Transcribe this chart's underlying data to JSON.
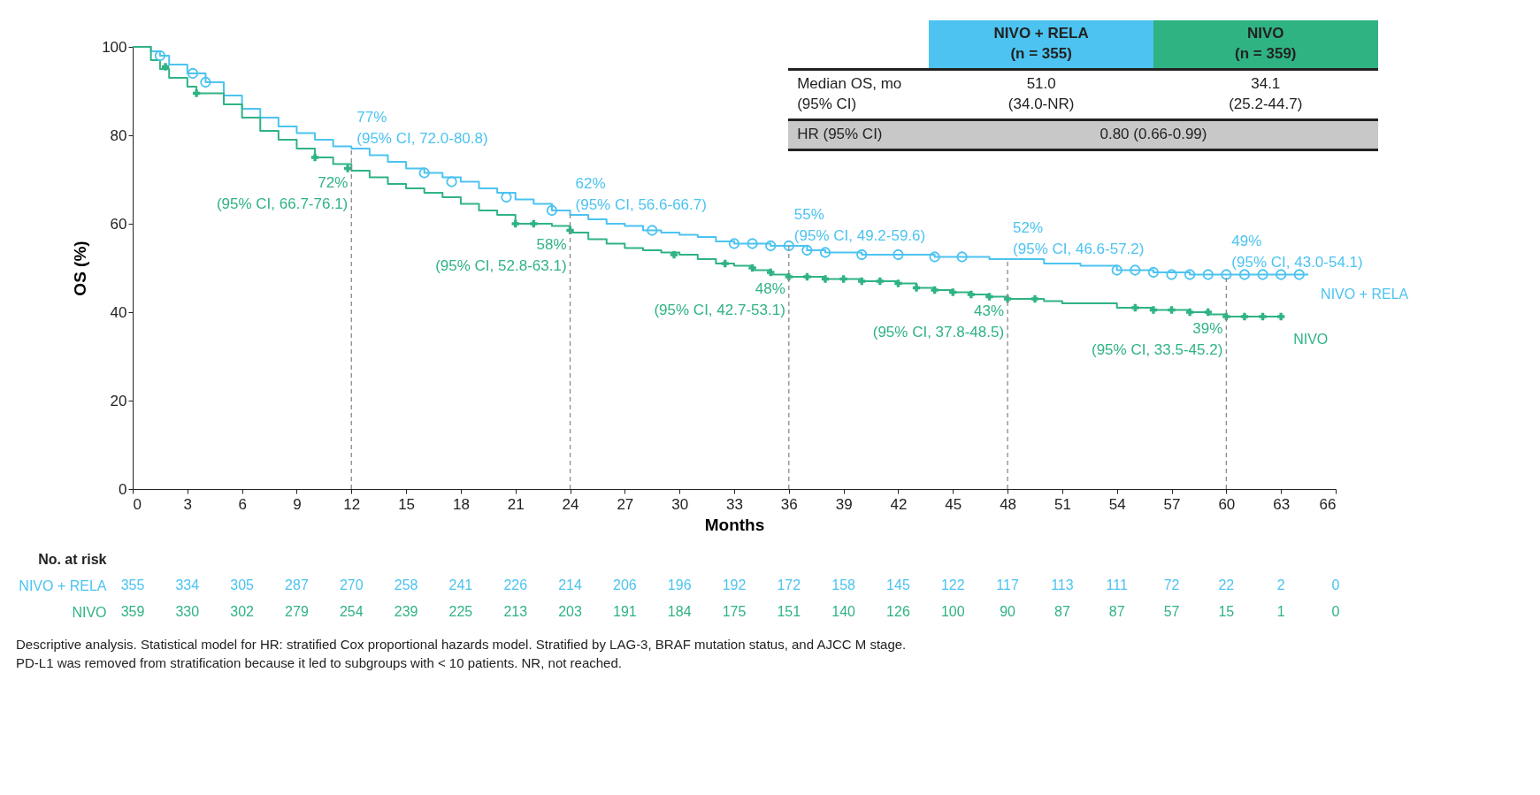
{
  "chart_data": {
    "type": "step",
    "xlabel": "Months",
    "ylabel": "OS (%)",
    "xlim": [
      0,
      66
    ],
    "xticks": [
      0,
      3,
      6,
      9,
      12,
      15,
      18,
      21,
      24,
      27,
      30,
      33,
      36,
      39,
      42,
      45,
      48,
      51,
      54,
      57,
      60,
      63,
      66
    ],
    "ylim": [
      0,
      100
    ],
    "yticks": [
      0,
      20,
      40,
      60,
      80,
      100
    ],
    "grid": false,
    "legend": false,
    "series": [
      {
        "name": "NIVO + RELA",
        "color": "#4cc3f0",
        "marker": "none",
        "x": [
          0,
          1,
          1.5,
          2,
          3,
          4,
          5,
          6,
          7,
          8,
          9,
          10,
          11,
          12,
          13,
          14,
          15,
          16,
          17,
          18,
          19,
          20,
          21,
          22,
          23,
          24,
          25,
          26,
          27,
          28,
          29,
          30,
          31,
          32,
          33,
          35,
          37,
          38,
          40,
          44,
          47,
          50,
          52,
          54,
          56,
          58,
          64.5
        ],
        "values": [
          100,
          99,
          98,
          96,
          94,
          92,
          89,
          86,
          84,
          82,
          80.5,
          79,
          77.5,
          77,
          75.5,
          74,
          72.5,
          71.5,
          70.5,
          69.5,
          68,
          67,
          65.5,
          64.5,
          63,
          62,
          61,
          60,
          59.5,
          58.5,
          58,
          57.5,
          57,
          56,
          55.5,
          55,
          54,
          53.5,
          53,
          52.5,
          52,
          51,
          50.5,
          49.5,
          49,
          48.5,
          48.5
        ]
      },
      {
        "name": "NIVO",
        "color": "#2fb383",
        "marker": "none",
        "x": [
          0,
          1,
          1.5,
          2,
          3,
          3.5,
          5,
          6,
          7,
          8,
          9,
          10,
          11,
          12,
          13,
          14,
          15,
          16,
          17,
          18,
          19,
          20,
          21,
          23,
          24,
          25,
          26,
          27,
          28,
          29,
          30,
          31,
          32,
          33,
          34,
          35,
          36,
          38,
          40,
          42,
          43,
          44,
          45,
          46,
          47,
          48,
          50,
          51,
          54,
          56,
          58,
          59,
          60,
          63
        ],
        "values": [
          100,
          97,
          95,
          93,
          91,
          89.5,
          87,
          84,
          81,
          79,
          77,
          75,
          73.5,
          72,
          70.5,
          69,
          68,
          67,
          66,
          64.5,
          63,
          62,
          60,
          59.5,
          58,
          56.5,
          55.5,
          54.5,
          54,
          53.5,
          53,
          52,
          51,
          50.5,
          49.5,
          48.5,
          48,
          47.5,
          47,
          46.5,
          45.5,
          45,
          44.5,
          44,
          43.5,
          43,
          42.5,
          42,
          41,
          40.5,
          40,
          39.5,
          39,
          39
        ]
      },
      {
        "type": "scatter",
        "color": "#4cc3f0",
        "marker": "circle",
        "x": [
          1.5,
          3.3,
          4,
          16,
          17.5,
          20.5,
          23,
          28.5,
          33,
          34,
          35,
          36,
          37,
          38,
          40,
          42,
          44,
          45.5,
          54,
          55,
          56,
          57,
          58,
          59,
          60,
          61,
          62,
          63,
          64
        ],
        "values": [
          98,
          94,
          92,
          71.5,
          69.5,
          66,
          63,
          58.5,
          55.5,
          55.5,
          55,
          55,
          54,
          53.5,
          53,
          53,
          52.5,
          52.5,
          49.5,
          49.5,
          49,
          48.5,
          48.5,
          48.5,
          48.5,
          48.5,
          48.5,
          48.5,
          48.5
        ]
      },
      {
        "type": "scatter",
        "color": "#2fb383",
        "marker": "cross",
        "x": [
          1.8,
          3.5,
          10,
          11.8,
          21,
          22,
          24,
          29.7,
          32.5,
          34,
          35,
          36,
          37,
          38,
          39,
          40,
          41,
          42,
          43,
          44,
          45,
          46,
          47,
          48,
          49.5,
          55,
          56,
          57,
          58,
          59,
          60,
          61,
          62,
          63
        ],
        "values": [
          95.5,
          89.5,
          75,
          72.5,
          60,
          60,
          58.5,
          53,
          51,
          50,
          49,
          48,
          48,
          47.5,
          47.5,
          47,
          47,
          46.5,
          45.5,
          45,
          44.5,
          44,
          43.5,
          43,
          43,
          41,
          40.5,
          40.5,
          40,
          40,
          39,
          39,
          39,
          39
        ]
      }
    ],
    "ref_lines": [
      {
        "axis": "x",
        "value": 12,
        "color": "#8a8a8a",
        "line_style": "dashed"
      },
      {
        "axis": "x",
        "value": 24,
        "color": "#8a8a8a",
        "line_style": "dashed"
      },
      {
        "axis": "x",
        "value": 36,
        "color": "#8a8a8a",
        "line_style": "dashed"
      },
      {
        "axis": "x",
        "value": 48,
        "color": "#8a8a8a",
        "line_style": "dashed"
      },
      {
        "axis": "x",
        "value": 60,
        "color": "#8a8a8a",
        "line_style": "dashed"
      }
    ],
    "annotations": [
      "NIVO + RELA\n(n = 355)",
      "NIVO\n(n = 359)",
      "Median OS, mo\n(95% CI)",
      "51.0\n(34.0-NR)",
      "34.1\n(25.2-44.7)",
      "HR (95% CI)",
      "0.80 (0.66-0.99)",
      "Descriptive analysis. Statistical model for HR: stratified Cox proportional hazards model. Stratified by LAG-3, BRAF mutation status, and AJCC M stage.\nPD-L1 was removed from stratification because it led to subgroups with < 10 patients. NR, not reached.",
      "No. at risk",
      "NIVO + RELA",
      "355",
      "334",
      "305",
      "287",
      "270",
      "258",
      "241",
      "226",
      "214",
      "206",
      "196",
      "192",
      "172",
      "158",
      "145",
      "122",
      "117",
      "113",
      "111",
      "72",
      "22",
      "2",
      "0",
      "NIVO",
      "359",
      "330",
      "302",
      "279",
      "254",
      "239",
      "225",
      "213",
      "203",
      "191",
      "184",
      "175",
      "151",
      "140",
      "126",
      "100",
      "90",
      "87",
      "87",
      "57",
      "15",
      "1",
      "0",
      {
        "text": "77%\n(95% CI, 72.0-80.8)",
        "x": 12,
        "y": 77
      },
      {
        "text": "72%\n(95% CI, 66.7-76.1)",
        "x": 12,
        "y": 72
      },
      {
        "text": "62%\n(95% CI, 56.6-66.7)",
        "x": 24,
        "y": 62
      },
      {
        "text": "58%\n(95% CI, 52.8-63.1)",
        "x": 24,
        "y": 58
      },
      {
        "text": "55%\n(95% CI, 49.2-59.6)",
        "x": 36,
        "y": 55
      },
      {
        "text": "48%\n(95% CI, 42.7-53.1)",
        "x": 36,
        "y": 48
      },
      {
        "text": "52%\n(95% CI, 46.6-57.2)",
        "x": 48,
        "y": 52
      },
      {
        "text": "43%\n(95% CI, 37.8-48.5)",
        "x": 48,
        "y": 43
      },
      {
        "text": "49%\n(95% CI, 43.0-54.1)",
        "x": 60,
        "y": 49
      },
      {
        "text": "39%\n(95% CI, 33.5-45.2)",
        "x": 60,
        "y": 39
      }
    ]
  }
}
